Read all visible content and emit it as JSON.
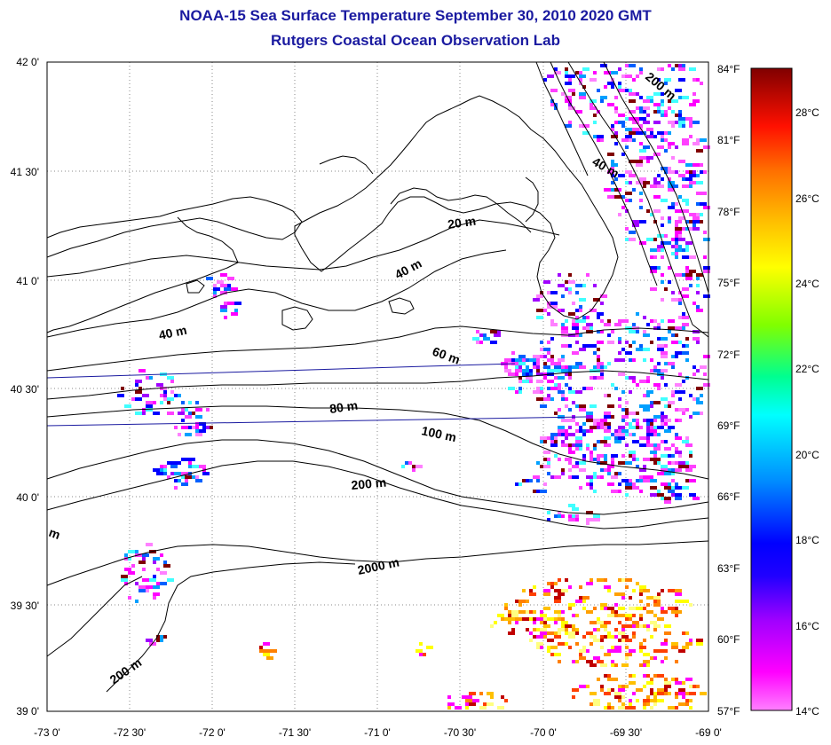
{
  "title": "NOAA-15 Sea Surface Temperature September 30, 2010 2020 GMT",
  "subtitle": "Rutgers Coastal Ocean Observation Lab",
  "lat_ticks": [
    "42 0'",
    "41 30'",
    "41 0'",
    "40 30'",
    "40 0'",
    "39 30'",
    "39 0'"
  ],
  "lon_ticks": [
    "-73 0'",
    "-72 30'",
    "-72 0'",
    "-71 30'",
    "-71 0'",
    "-70 30'",
    "-70 0'",
    "-69 30'",
    "-69 0'"
  ],
  "f_ticks": [
    "84°F",
    "81°F",
    "78°F",
    "75°F",
    "72°F",
    "69°F",
    "66°F",
    "63°F",
    "60°F",
    "57°F"
  ],
  "c_ticks": [
    "28°C",
    "26°C",
    "24°C",
    "22°C",
    "20°C",
    "18°C",
    "16°C",
    "14°C"
  ],
  "contour_labels": {
    "c20": "20 m",
    "c40a": "40 m",
    "c40b": "40 m",
    "c40c": "40 m",
    "c60": "60 m",
    "c80": "80 m",
    "c100": "100 m",
    "c200a": "200 m",
    "c200b": "200 m",
    "c200c": "200 m",
    "c2000": "2000 m",
    "cm": "m"
  },
  "colorbar": {
    "stops": [
      "#ff80ff",
      "#ff00ff",
      "#a000ff",
      "#3000ff",
      "#0000ff",
      "#0080ff",
      "#00ffff",
      "#00ff80",
      "#80ff00",
      "#ffff00",
      "#ffc000",
      "#ff8000",
      "#ff2000",
      "#d00000",
      "#800000"
    ]
  },
  "colors": {
    "title": "#1a1aa0",
    "track": "#1a1aa0"
  }
}
